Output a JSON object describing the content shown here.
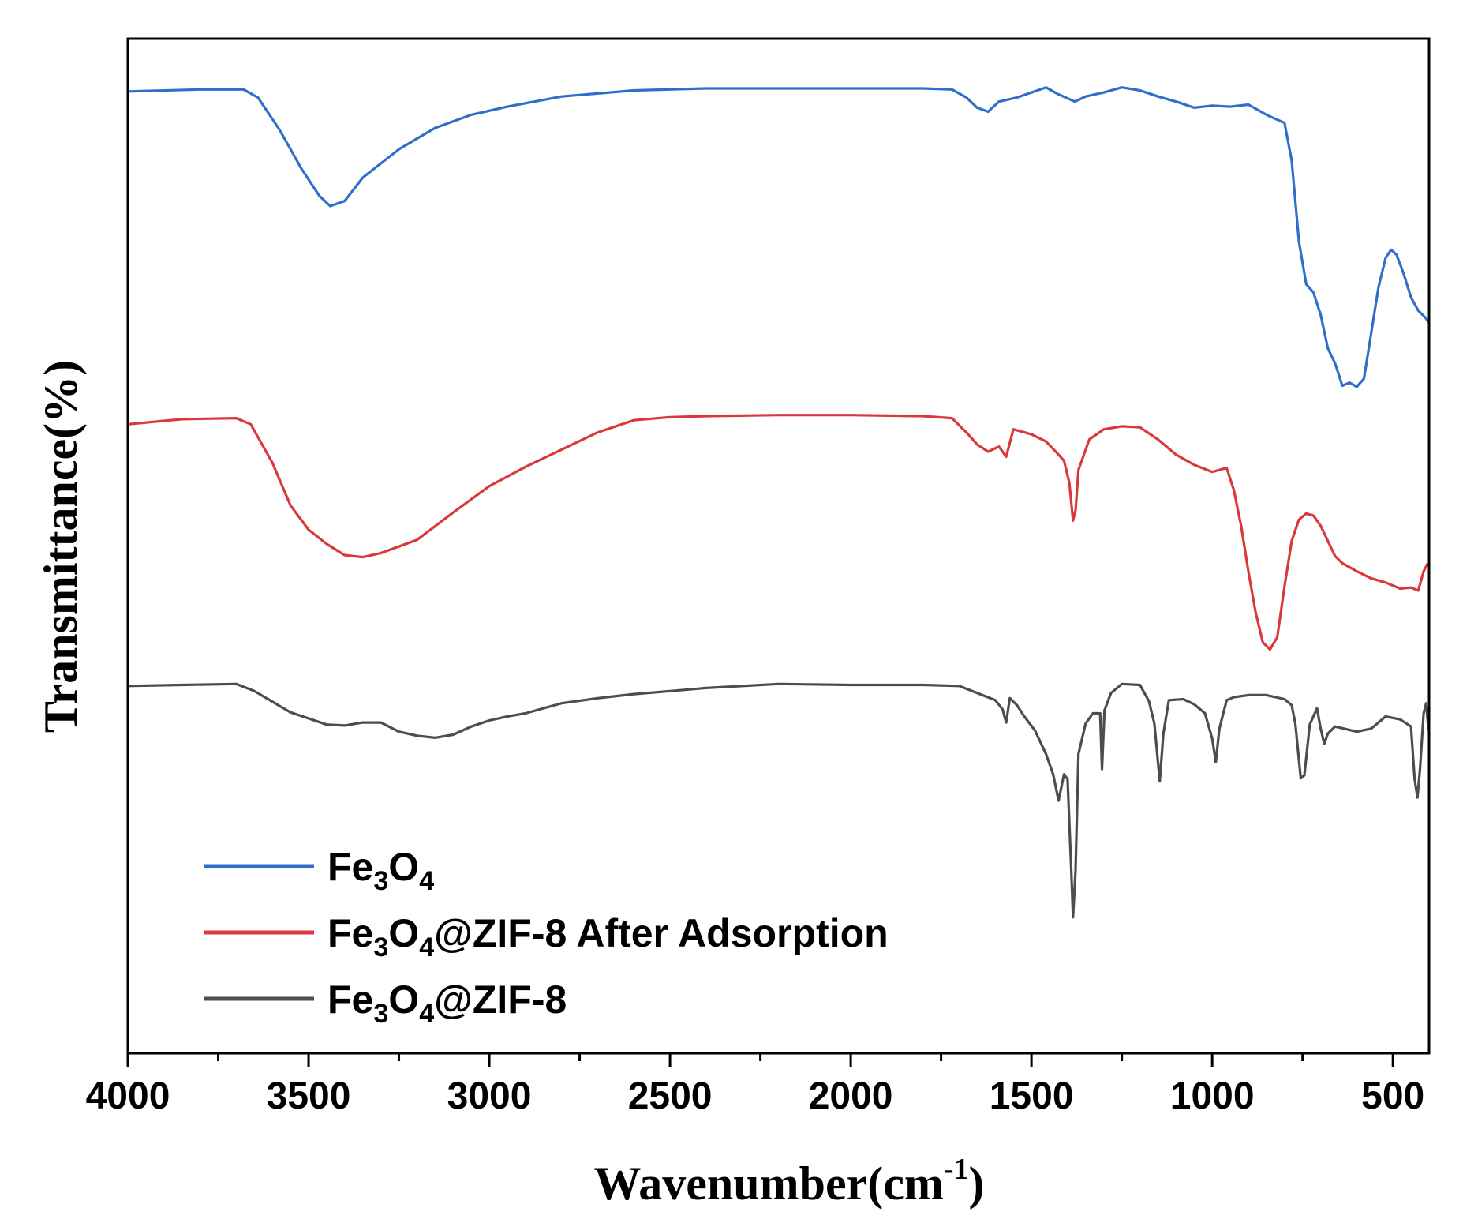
{
  "chart_data": {
    "type": "line",
    "title": "",
    "xlabel": "Wavenumber(cm-1)",
    "xlabel_parts": {
      "main": "Wavenumber(cm",
      "sup": "-1",
      "close": ")"
    },
    "ylabel": "Transmittance(%)",
    "xlim": [
      4000,
      400
    ],
    "ylim": [
      0,
      100
    ],
    "y_tick_labels_shown": false,
    "grid": false,
    "legend_position": "bottom-left",
    "x_ticks": [
      4000,
      3500,
      3000,
      2500,
      2000,
      1500,
      1000,
      500
    ],
    "x_tick_labels": [
      "4000",
      "3500",
      "3000",
      "2500",
      "2000",
      "1500",
      "1000",
      "500"
    ],
    "x_minor_ticks": [
      3750,
      3250,
      2750,
      2250,
      1750,
      1250,
      750
    ],
    "series": [
      {
        "name": "Fe3O4",
        "legend": {
          "a": "Fe",
          "s1": "3",
          "b": "O",
          "s2": "4",
          "c": ""
        },
        "color": "#2f6fc9",
        "points": [
          [
            4000,
            94.8
          ],
          [
            3800,
            95
          ],
          [
            3680,
            95
          ],
          [
            3640,
            94.2
          ],
          [
            3580,
            91
          ],
          [
            3520,
            87.2
          ],
          [
            3470,
            84.5
          ],
          [
            3440,
            83.5
          ],
          [
            3400,
            84
          ],
          [
            3350,
            86.3
          ],
          [
            3250,
            89.1
          ],
          [
            3150,
            91.2
          ],
          [
            3050,
            92.5
          ],
          [
            2950,
            93.3
          ],
          [
            2800,
            94.3
          ],
          [
            2600,
            94.9
          ],
          [
            2400,
            95.1
          ],
          [
            2200,
            95.1
          ],
          [
            2000,
            95.1
          ],
          [
            1800,
            95.1
          ],
          [
            1720,
            95
          ],
          [
            1680,
            94.2
          ],
          [
            1650,
            93.2
          ],
          [
            1620,
            92.8
          ],
          [
            1590,
            93.8
          ],
          [
            1540,
            94.2
          ],
          [
            1500,
            94.7
          ],
          [
            1460,
            95.2
          ],
          [
            1430,
            94.6
          ],
          [
            1380,
            93.8
          ],
          [
            1350,
            94.3
          ],
          [
            1300,
            94.7
          ],
          [
            1250,
            95.2
          ],
          [
            1200,
            94.9
          ],
          [
            1150,
            94.3
          ],
          [
            1100,
            93.8
          ],
          [
            1050,
            93.2
          ],
          [
            1000,
            93.4
          ],
          [
            950,
            93.3
          ],
          [
            900,
            93.5
          ],
          [
            850,
            92.5
          ],
          [
            800,
            91.7
          ],
          [
            780,
            88
          ],
          [
            760,
            80
          ],
          [
            740,
            75.8
          ],
          [
            720,
            75
          ],
          [
            700,
            72.8
          ],
          [
            680,
            69.5
          ],
          [
            660,
            68
          ],
          [
            640,
            65.8
          ],
          [
            620,
            66.1
          ],
          [
            600,
            65.7
          ],
          [
            580,
            66.5
          ],
          [
            560,
            71
          ],
          [
            540,
            75.5
          ],
          [
            520,
            78.4
          ],
          [
            505,
            79.2
          ],
          [
            490,
            78.7
          ],
          [
            470,
            76.8
          ],
          [
            450,
            74.5
          ],
          [
            430,
            73.2
          ],
          [
            410,
            72.5
          ],
          [
            400,
            72
          ]
        ]
      },
      {
        "name": "Fe3O4@ZIF-8  After Adsorption",
        "legend": {
          "a": "Fe",
          "s1": "3",
          "b": "O",
          "s2": "4",
          "c": "@ZIF-8  After Adsorption"
        },
        "color": "#d9393c",
        "points": [
          [
            4000,
            62
          ],
          [
            3850,
            62.5
          ],
          [
            3700,
            62.6
          ],
          [
            3660,
            62
          ],
          [
            3600,
            58.2
          ],
          [
            3550,
            54
          ],
          [
            3500,
            51.6
          ],
          [
            3450,
            50.2
          ],
          [
            3400,
            49.1
          ],
          [
            3350,
            48.9
          ],
          [
            3300,
            49.3
          ],
          [
            3200,
            50.6
          ],
          [
            3100,
            53.3
          ],
          [
            3000,
            55.9
          ],
          [
            2900,
            57.8
          ],
          [
            2800,
            59.5
          ],
          [
            2700,
            61.2
          ],
          [
            2600,
            62.4
          ],
          [
            2500,
            62.7
          ],
          [
            2400,
            62.8
          ],
          [
            2200,
            62.9
          ],
          [
            2000,
            62.9
          ],
          [
            1800,
            62.8
          ],
          [
            1720,
            62.6
          ],
          [
            1680,
            61.2
          ],
          [
            1650,
            60
          ],
          [
            1620,
            59.3
          ],
          [
            1590,
            59.8
          ],
          [
            1570,
            58.8
          ],
          [
            1550,
            61.5
          ],
          [
            1500,
            61
          ],
          [
            1460,
            60.3
          ],
          [
            1430,
            59.2
          ],
          [
            1410,
            58.4
          ],
          [
            1395,
            56.2
          ],
          [
            1385,
            52.5
          ],
          [
            1378,
            53.5
          ],
          [
            1370,
            57.5
          ],
          [
            1340,
            60.5
          ],
          [
            1300,
            61.5
          ],
          [
            1250,
            61.8
          ],
          [
            1200,
            61.7
          ],
          [
            1150,
            60.5
          ],
          [
            1100,
            59
          ],
          [
            1050,
            58
          ],
          [
            1000,
            57.3
          ],
          [
            960,
            57.7
          ],
          [
            940,
            55.5
          ],
          [
            920,
            52
          ],
          [
            900,
            47.5
          ],
          [
            880,
            43.5
          ],
          [
            860,
            40.5
          ],
          [
            840,
            39.8
          ],
          [
            820,
            41
          ],
          [
            800,
            46
          ],
          [
            780,
            50.5
          ],
          [
            760,
            52.6
          ],
          [
            740,
            53.2
          ],
          [
            720,
            53
          ],
          [
            700,
            52
          ],
          [
            680,
            50.5
          ],
          [
            660,
            49
          ],
          [
            640,
            48.3
          ],
          [
            600,
            47.5
          ],
          [
            560,
            46.8
          ],
          [
            520,
            46.4
          ],
          [
            480,
            45.8
          ],
          [
            450,
            45.9
          ],
          [
            430,
            45.6
          ],
          [
            415,
            47.5
          ],
          [
            405,
            48.2
          ],
          [
            400,
            48
          ]
        ]
      },
      {
        "name": "Fe3O4@ZIF-8",
        "legend": {
          "a": "Fe",
          "s1": "3",
          "b": "O",
          "s2": "4",
          "c": "@ZIF-8"
        },
        "color": "#4d4d4d",
        "points": [
          [
            4000,
            36.2
          ],
          [
            3850,
            36.3
          ],
          [
            3700,
            36.4
          ],
          [
            3650,
            35.7
          ],
          [
            3550,
            33.6
          ],
          [
            3450,
            32.4
          ],
          [
            3400,
            32.3
          ],
          [
            3350,
            32.6
          ],
          [
            3300,
            32.6
          ],
          [
            3250,
            31.7
          ],
          [
            3200,
            31.3
          ],
          [
            3150,
            31.1
          ],
          [
            3100,
            31.4
          ],
          [
            3050,
            32.2
          ],
          [
            3000,
            32.8
          ],
          [
            2950,
            33.2
          ],
          [
            2900,
            33.5
          ],
          [
            2800,
            34.5
          ],
          [
            2700,
            35
          ],
          [
            2600,
            35.4
          ],
          [
            2500,
            35.7
          ],
          [
            2400,
            36
          ],
          [
            2200,
            36.4
          ],
          [
            2000,
            36.3
          ],
          [
            1800,
            36.3
          ],
          [
            1700,
            36.2
          ],
          [
            1650,
            35.5
          ],
          [
            1600,
            34.8
          ],
          [
            1580,
            33.9
          ],
          [
            1570,
            32.6
          ],
          [
            1560,
            35
          ],
          [
            1540,
            34.3
          ],
          [
            1520,
            33.2
          ],
          [
            1490,
            31.8
          ],
          [
            1460,
            29.5
          ],
          [
            1440,
            27.5
          ],
          [
            1425,
            24.9
          ],
          [
            1410,
            27.5
          ],
          [
            1400,
            27
          ],
          [
            1390,
            18.2
          ],
          [
            1385,
            13.4
          ],
          [
            1378,
            18
          ],
          [
            1370,
            29.5
          ],
          [
            1350,
            32.5
          ],
          [
            1330,
            33.5
          ],
          [
            1310,
            33.5
          ],
          [
            1305,
            28
          ],
          [
            1298,
            33.8
          ],
          [
            1280,
            35.5
          ],
          [
            1250,
            36.4
          ],
          [
            1200,
            36.3
          ],
          [
            1175,
            34.7
          ],
          [
            1160,
            32.5
          ],
          [
            1145,
            26.8
          ],
          [
            1135,
            31.5
          ],
          [
            1120,
            34.8
          ],
          [
            1080,
            34.9
          ],
          [
            1050,
            34.4
          ],
          [
            1020,
            33.5
          ],
          [
            1000,
            31
          ],
          [
            990,
            28.7
          ],
          [
            980,
            32
          ],
          [
            960,
            34.8
          ],
          [
            940,
            35.1
          ],
          [
            900,
            35.3
          ],
          [
            850,
            35.3
          ],
          [
            800,
            34.9
          ],
          [
            780,
            34.3
          ],
          [
            770,
            32.5
          ],
          [
            755,
            27.1
          ],
          [
            745,
            27.4
          ],
          [
            730,
            32.4
          ],
          [
            710,
            34
          ],
          [
            700,
            32
          ],
          [
            690,
            30.5
          ],
          [
            680,
            31.5
          ],
          [
            660,
            32.2
          ],
          [
            600,
            31.7
          ],
          [
            560,
            32
          ],
          [
            520,
            33.2
          ],
          [
            480,
            32.9
          ],
          [
            450,
            32.2
          ],
          [
            440,
            27
          ],
          [
            432,
            25.2
          ],
          [
            425,
            28
          ],
          [
            415,
            33.5
          ],
          [
            408,
            34.5
          ],
          [
            402,
            32
          ],
          [
            400,
            34
          ]
        ]
      }
    ]
  }
}
